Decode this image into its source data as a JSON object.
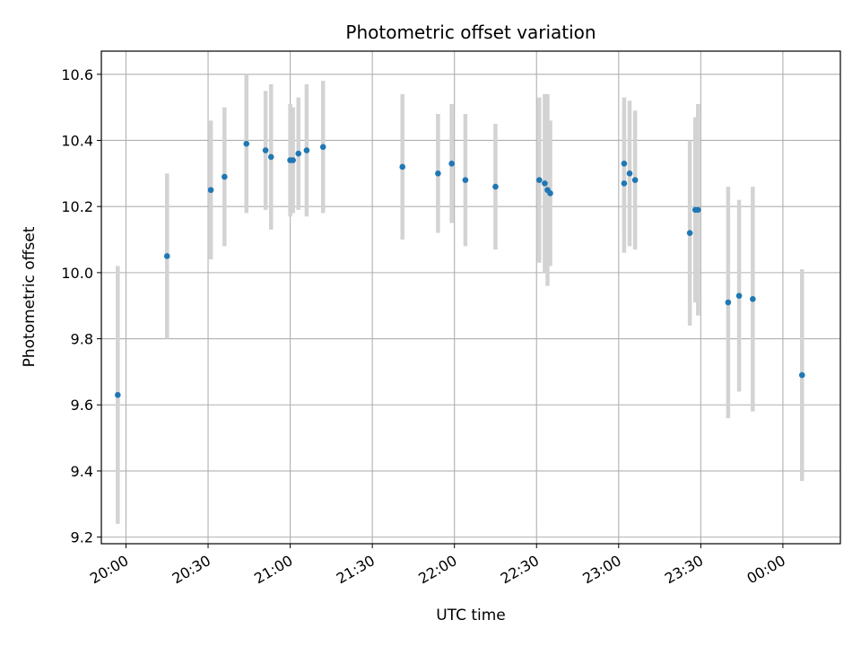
{
  "chart_data": {
    "type": "scatter",
    "title": "Photometric offset variation",
    "xlabel": "UTC time",
    "ylabel": "Photometric offset",
    "ylim": [
      9.18,
      10.67
    ],
    "xlim": [
      "19:51",
      "00:21"
    ],
    "yticks": [
      9.2,
      9.4,
      9.6,
      9.8,
      10.0,
      10.2,
      10.4,
      10.6
    ],
    "ytick_labels": [
      "9.2",
      "9.4",
      "9.6",
      "9.8",
      "10.0",
      "10.2",
      "10.4",
      "10.6"
    ],
    "xticks": [
      "20:00",
      "20:30",
      "21:00",
      "21:30",
      "22:00",
      "22:30",
      "23:00",
      "23:30",
      "00:00"
    ],
    "grid": true,
    "marker_color": "#1f77b4",
    "errorbar_color": "#d3d3d3",
    "points": [
      {
        "x": "19:57",
        "y": 9.63,
        "yerr": 0.39
      },
      {
        "x": "20:15",
        "y": 10.05,
        "yerr": 0.25
      },
      {
        "x": "20:31",
        "y": 10.25,
        "yerr": 0.21
      },
      {
        "x": "20:36",
        "y": 10.29,
        "yerr": 0.21
      },
      {
        "x": "20:44",
        "y": 10.39,
        "yerr": 0.21
      },
      {
        "x": "20:51",
        "y": 10.37,
        "yerr": 0.18
      },
      {
        "x": "20:53",
        "y": 10.35,
        "yerr": 0.22
      },
      {
        "x": "21:00",
        "y": 10.34,
        "yerr": 0.17
      },
      {
        "x": "21:01",
        "y": 10.34,
        "yerr": 0.16
      },
      {
        "x": "21:03",
        "y": 10.36,
        "yerr": 0.17
      },
      {
        "x": "21:06",
        "y": 10.37,
        "yerr": 0.2
      },
      {
        "x": "21:12",
        "y": 10.38,
        "yerr": 0.2
      },
      {
        "x": "21:41",
        "y": 10.32,
        "yerr": 0.22
      },
      {
        "x": "21:54",
        "y": 10.3,
        "yerr": 0.18
      },
      {
        "x": "21:59",
        "y": 10.33,
        "yerr": 0.18
      },
      {
        "x": "22:04",
        "y": 10.28,
        "yerr": 0.2
      },
      {
        "x": "22:15",
        "y": 10.26,
        "yerr": 0.19
      },
      {
        "x": "22:31",
        "y": 10.28,
        "yerr": 0.25
      },
      {
        "x": "22:33",
        "y": 10.27,
        "yerr": 0.27
      },
      {
        "x": "22:34",
        "y": 10.25,
        "yerr": 0.29
      },
      {
        "x": "22:35",
        "y": 10.24,
        "yerr": 0.22
      },
      {
        "x": "23:02",
        "y": 10.27,
        "yerr": 0.21
      },
      {
        "x": "23:02",
        "y": 10.33,
        "yerr": 0.2
      },
      {
        "x": "23:04",
        "y": 10.3,
        "yerr": 0.22
      },
      {
        "x": "23:06",
        "y": 10.28,
        "yerr": 0.21
      },
      {
        "x": "23:26",
        "y": 10.12,
        "yerr": 0.28
      },
      {
        "x": "23:28",
        "y": 10.19,
        "yerr": 0.28
      },
      {
        "x": "23:29",
        "y": 10.19,
        "yerr": 0.32
      },
      {
        "x": "23:40",
        "y": 9.91,
        "yerr": 0.35
      },
      {
        "x": "23:44",
        "y": 9.93,
        "yerr": 0.29
      },
      {
        "x": "23:49",
        "y": 9.92,
        "yerr": 0.34
      },
      {
        "x": "00:07",
        "y": 9.69,
        "yerr": 0.32
      }
    ]
  }
}
